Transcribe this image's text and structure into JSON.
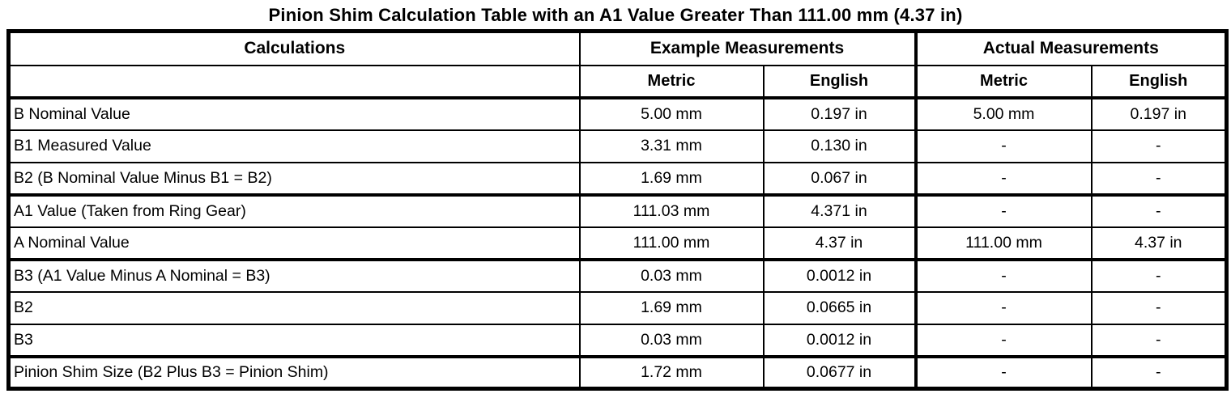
{
  "title": "Pinion Shim Calculation Table with an A1 Value Greater Than 111.00 mm (4.37 in)",
  "table": {
    "header": {
      "calculations": "Calculations",
      "example": "Example Measurements",
      "actual": "Actual Measurements",
      "example_metric": "Metric",
      "example_english": "English",
      "actual_metric": "Metric",
      "actual_english": "English"
    },
    "rows": [
      {
        "label": "B Nominal Value",
        "example": {
          "metric": "5.00 mm",
          "english": "0.197 in"
        },
        "actual": {
          "metric": "5.00 mm",
          "english": "0.197 in"
        }
      },
      {
        "label": "B1 Measured Value",
        "example": {
          "metric": "3.31 mm",
          "english": "0.130 in"
        },
        "actual": {
          "metric": "-",
          "english": "-"
        }
      },
      {
        "label": "B2 (B Nominal Value Minus B1 = B2)",
        "example": {
          "metric": "1.69 mm",
          "english": "0.067 in"
        },
        "actual": {
          "metric": "-",
          "english": "-"
        }
      },
      {
        "label": "A1 Value (Taken from Ring Gear)",
        "example": {
          "metric": "111.03 mm",
          "english": "4.371 in"
        },
        "actual": {
          "metric": "-",
          "english": "-"
        }
      },
      {
        "label": "A Nominal Value",
        "example": {
          "metric": "111.00 mm",
          "english": "4.37 in"
        },
        "actual": {
          "metric": "111.00 mm",
          "english": "4.37 in"
        }
      },
      {
        "label": "B3 (A1 Value Minus A Nominal = B3)",
        "example": {
          "metric": "0.03 mm",
          "english": "0.0012 in"
        },
        "actual": {
          "metric": "-",
          "english": "-"
        }
      },
      {
        "label": "B2",
        "example": {
          "metric": "1.69 mm",
          "english": "0.0665 in"
        },
        "actual": {
          "metric": "-",
          "english": "-"
        }
      },
      {
        "label": "B3",
        "example": {
          "metric": "0.03 mm",
          "english": "0.0012 in"
        },
        "actual": {
          "metric": "-",
          "english": "-"
        }
      },
      {
        "label": "Pinion Shim Size (B2 Plus B3 = Pinion Shim)",
        "example": {
          "metric": "1.72 mm",
          "english": "0.0677 in"
        },
        "actual": {
          "metric": "-",
          "english": "-"
        }
      }
    ]
  }
}
